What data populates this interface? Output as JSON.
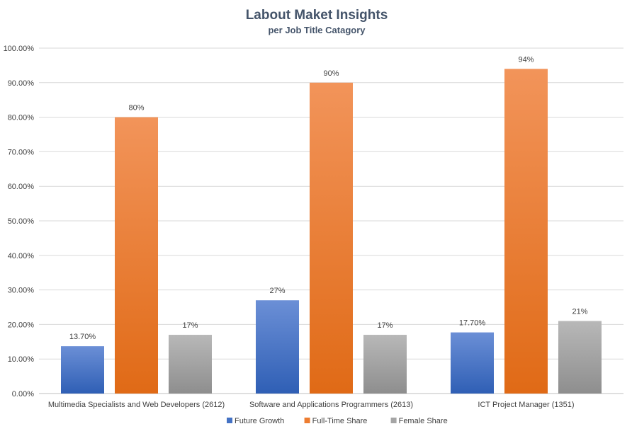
{
  "chart_data": {
    "type": "bar",
    "title": "Labout Maket Insights",
    "subtitle": "per Job Title Catagory",
    "categories": [
      "Multimedia Specialists and Web Developers (2612)",
      "Software and Applications Programmers (2613)",
      "ICT Project Manager (1351)"
    ],
    "series": [
      {
        "name": "Future Growth",
        "values": [
          13.7,
          27,
          17.7
        ],
        "labels": [
          "13.70%",
          "27%",
          "17.70%"
        ],
        "color": "#4472c4",
        "gradient": [
          "#6b8fd6",
          "#2f5fb5"
        ]
      },
      {
        "name": "Full-Time Share",
        "values": [
          80,
          90,
          94
        ],
        "labels": [
          "80%",
          "90%",
          "94%"
        ],
        "color": "#ed7d31",
        "gradient": [
          "#f2945a",
          "#e06a16"
        ]
      },
      {
        "name": "Female Share",
        "values": [
          17,
          17,
          21
        ],
        "labels": [
          "17%",
          "17%",
          "21%"
        ],
        "color": "#a5a5a5",
        "gradient": [
          "#b8b8b8",
          "#8e8e8e"
        ]
      }
    ],
    "ylim": [
      0,
      100
    ],
    "yticks": [
      0,
      10,
      20,
      30,
      40,
      50,
      60,
      70,
      80,
      90,
      100
    ],
    "ytick_labels": [
      "0.00%",
      "10.00%",
      "20.00%",
      "30.00%",
      "40.00%",
      "50.00%",
      "60.00%",
      "70.00%",
      "80.00%",
      "90.00%",
      "100.00%"
    ],
    "xlabel": "",
    "ylabel": "",
    "grid": true,
    "legend_position": "bottom"
  }
}
